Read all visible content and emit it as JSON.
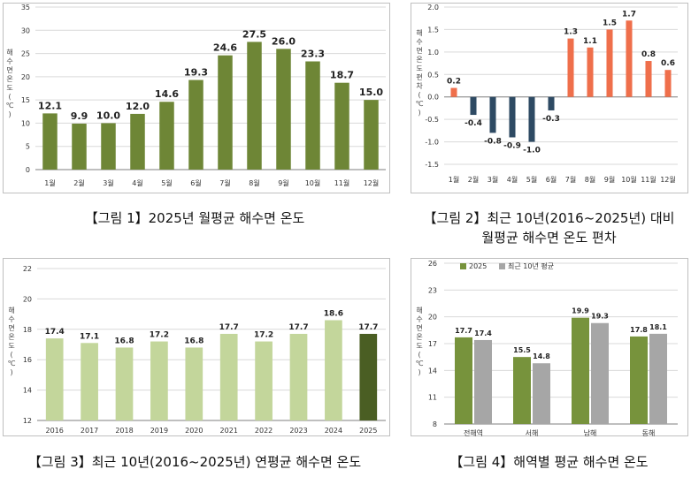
{
  "chart_data": [
    {
      "type": "bar",
      "categories": [
        "1월",
        "2월",
        "3월",
        "4월",
        "5월",
        "6월",
        "7월",
        "8월",
        "9월",
        "10월",
        "11월",
        "12월"
      ],
      "values": [
        12.1,
        9.9,
        10.0,
        12.0,
        14.6,
        19.3,
        24.6,
        27.5,
        26.0,
        23.3,
        18.7,
        15.0
      ],
      "value_labels": [
        "12.1",
        "9.9",
        "10.0",
        "12.0",
        "14.6",
        "19.3",
        "24.6",
        "27.5",
        "26.0",
        "23.3",
        "18.7",
        "15.0"
      ],
      "ylabel": "해수면 온도 (℃)",
      "ylim": [
        0,
        35
      ],
      "yticks": [
        "0",
        "5",
        "10",
        "15",
        "20",
        "25",
        "30",
        "35"
      ],
      "grid": true,
      "colors": {
        "bar": "#6e8636"
      },
      "caption": "【그림 1】2025년 월평균 해수면 온도"
    },
    {
      "type": "bar",
      "categories": [
        "1월",
        "2월",
        "3월",
        "4월",
        "5월",
        "6월",
        "7월",
        "8월",
        "9월",
        "10월",
        "11월",
        "12월"
      ],
      "values": [
        0.2,
        -0.4,
        -0.8,
        -0.9,
        -1.0,
        -0.3,
        1.3,
        1.1,
        1.5,
        1.7,
        0.8,
        0.6
      ],
      "value_labels": [
        "0.2",
        "-0.4",
        "-0.8",
        "-0.9",
        "-1.0",
        "-0.3",
        "1.3",
        "1.1",
        "1.5",
        "1.7",
        "0.8",
        "0.6"
      ],
      "ylabel": "해수면 온도 편차 (℃)",
      "ylim": [
        -1.5,
        2.0
      ],
      "yticks": [
        "-1.5",
        "-1.0",
        "-0.5",
        "0.0",
        "0.5",
        "1.0",
        "1.5",
        "2.0"
      ],
      "grid": true,
      "colors": {
        "positive": "#ef6f4b",
        "negative": "#2e4a63"
      },
      "caption_line1": "【그림 2】최근 10년(2016~2025년) 대비",
      "caption_line2": "월평균 해수면 온도 편차"
    },
    {
      "type": "bar",
      "categories": [
        "2016",
        "2017",
        "2018",
        "2019",
        "2020",
        "2021",
        "2022",
        "2023",
        "2024",
        "2025"
      ],
      "values": [
        17.4,
        17.1,
        16.8,
        17.2,
        16.8,
        17.7,
        17.2,
        17.7,
        18.6,
        17.7
      ],
      "value_labels": [
        "17.4",
        "17.1",
        "16.8",
        "17.2",
        "16.8",
        "17.7",
        "17.2",
        "17.7",
        "18.6",
        "17.7"
      ],
      "ylabel": "해수면 온도 (℃)",
      "ylim": [
        12,
        22
      ],
      "yticks": [
        "12",
        "14",
        "16",
        "18",
        "20",
        "22"
      ],
      "grid": true,
      "colors": {
        "bar": "#c3d69b",
        "highlight": "#4a5e23"
      },
      "caption": "【그림 3】최근 10년(2016~2025년) 연평균 해수면 온도"
    },
    {
      "type": "bar",
      "categories": [
        "전해역",
        "서해",
        "남해",
        "동해"
      ],
      "series": [
        {
          "name": "2025",
          "values": [
            17.7,
            15.5,
            19.9,
            17.8
          ],
          "value_labels": [
            "17.7",
            "15.5",
            "19.9",
            "17.8"
          ]
        },
        {
          "name": "최근 10년 평균",
          "values": [
            17.4,
            14.8,
            19.3,
            18.1
          ],
          "value_labels": [
            "17.4",
            "14.8",
            "19.3",
            "18.1"
          ]
        }
      ],
      "ylabel": "해수면 온도 (℃)",
      "ylim": [
        8,
        26
      ],
      "yticks": [
        "8",
        "11",
        "14",
        "17",
        "20",
        "23",
        "26"
      ],
      "grid": true,
      "legend": "top-left",
      "colors": {
        "s0": "#77933c",
        "s1": "#a6a6a6"
      },
      "caption": "【그림 4】해역별 평균 해수면 온도"
    }
  ]
}
